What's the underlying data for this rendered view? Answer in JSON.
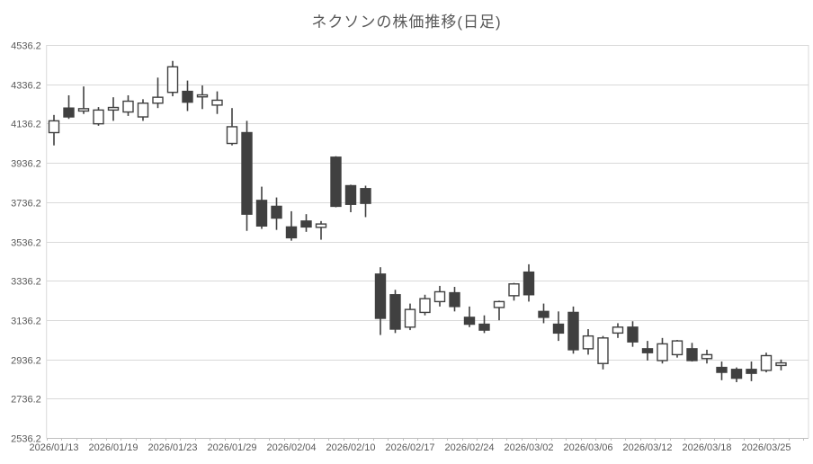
{
  "chart_data": {
    "type": "candlestick",
    "title": "ネクソンの株価推移(日足)",
    "xlabel": "",
    "ylabel": "",
    "ylim": [
      2536.2,
      4536.2
    ],
    "y_tick_step": 200,
    "y_tick_labels": [
      "4536.2",
      "4336.2",
      "4136.2",
      "3936.2",
      "3736.2",
      "3536.2",
      "3336.2",
      "3136.2",
      "2936.2",
      "2736.2",
      "2536.2"
    ],
    "x_tick_labels": [
      "2026/01/13",
      "2026/01/19",
      "2026/01/23",
      "2026/01/29",
      "2026/02/04",
      "2026/02/10",
      "2026/02/17",
      "2026/02/24",
      "2026/03/02",
      "2026/03/06",
      "2026/03/12",
      "2026/03/18",
      "2026/03/25"
    ],
    "x_label_interval": 4,
    "grid": true,
    "legend": false,
    "up_style": "hollow-white",
    "down_style": "filled-dark",
    "colors": {
      "background": "#FFFFFF",
      "gridline": "#D9D9D9",
      "axis_line": "#BFBFBF",
      "text": "#595959",
      "candle_outline": "#404040",
      "up_fill": "#FFFFFF",
      "down_fill": "#404040"
    },
    "series": [
      {
        "date": "2026/01/13",
        "open": 4090,
        "high": 4180,
        "low": 4025,
        "close": 4150
      },
      {
        "date": "2026/01/14",
        "open": 4215,
        "high": 4280,
        "low": 4160,
        "close": 4170
      },
      {
        "date": "2026/01/15",
        "open": 4200,
        "high": 4325,
        "low": 4185,
        "close": 4212
      },
      {
        "date": "2026/01/16",
        "open": 4135,
        "high": 4220,
        "low": 4125,
        "close": 4205
      },
      {
        "date": "2026/01/19",
        "open": 4205,
        "high": 4270,
        "low": 4150,
        "close": 4218
      },
      {
        "date": "2026/01/20",
        "open": 4195,
        "high": 4280,
        "low": 4175,
        "close": 4250
      },
      {
        "date": "2026/01/21",
        "open": 4170,
        "high": 4260,
        "low": 4150,
        "close": 4240
      },
      {
        "date": "2026/01/22",
        "open": 4240,
        "high": 4370,
        "low": 4215,
        "close": 4270
      },
      {
        "date": "2026/01/23",
        "open": 4295,
        "high": 4455,
        "low": 4275,
        "close": 4425
      },
      {
        "date": "2026/01/26",
        "open": 4300,
        "high": 4355,
        "low": 4200,
        "close": 4245
      },
      {
        "date": "2026/01/27",
        "open": 4272,
        "high": 4330,
        "low": 4210,
        "close": 4282
      },
      {
        "date": "2026/01/28",
        "open": 4230,
        "high": 4300,
        "low": 4185,
        "close": 4255
      },
      {
        "date": "2026/01/29",
        "open": 4035,
        "high": 4215,
        "low": 4025,
        "close": 4120
      },
      {
        "date": "2026/01/30",
        "open": 4090,
        "high": 4150,
        "low": 3590,
        "close": 3675
      },
      {
        "date": "2026/02/02",
        "open": 3745,
        "high": 3815,
        "low": 3600,
        "close": 3615
      },
      {
        "date": "2026/02/03",
        "open": 3715,
        "high": 3760,
        "low": 3595,
        "close": 3655
      },
      {
        "date": "2026/02/04",
        "open": 3610,
        "high": 3690,
        "low": 3540,
        "close": 3555
      },
      {
        "date": "2026/02/05",
        "open": 3640,
        "high": 3675,
        "low": 3585,
        "close": 3610
      },
      {
        "date": "2026/02/06",
        "open": 3608,
        "high": 3640,
        "low": 3545,
        "close": 3625
      },
      {
        "date": "2026/02/09",
        "open": 3965,
        "high": 3970,
        "low": 3710,
        "close": 3715
      },
      {
        "date": "2026/02/10",
        "open": 3820,
        "high": 3825,
        "low": 3685,
        "close": 3725
      },
      {
        "date": "2026/02/12",
        "open": 3805,
        "high": 3820,
        "low": 3660,
        "close": 3730
      },
      {
        "date": "2026/02/13",
        "open": 3370,
        "high": 3405,
        "low": 3060,
        "close": 3145
      },
      {
        "date": "2026/02/16",
        "open": 3265,
        "high": 3290,
        "low": 3070,
        "close": 3090
      },
      {
        "date": "2026/02/17",
        "open": 3100,
        "high": 3220,
        "low": 3085,
        "close": 3190
      },
      {
        "date": "2026/02/18",
        "open": 3175,
        "high": 3265,
        "low": 3160,
        "close": 3245
      },
      {
        "date": "2026/02/19",
        "open": 3230,
        "high": 3310,
        "low": 3205,
        "close": 3280
      },
      {
        "date": "2026/02/20",
        "open": 3275,
        "high": 3305,
        "low": 3180,
        "close": 3205
      },
      {
        "date": "2026/02/24",
        "open": 3150,
        "high": 3205,
        "low": 3100,
        "close": 3115
      },
      {
        "date": "2026/02/25",
        "open": 3115,
        "high": 3160,
        "low": 3070,
        "close": 3085
      },
      {
        "date": "2026/02/26",
        "open": 3200,
        "high": 3235,
        "low": 3135,
        "close": 3230
      },
      {
        "date": "2026/02/27",
        "open": 3260,
        "high": 3325,
        "low": 3235,
        "close": 3320
      },
      {
        "date": "2026/03/02",
        "open": 3380,
        "high": 3420,
        "low": 3230,
        "close": 3265
      },
      {
        "date": "2026/03/03",
        "open": 3180,
        "high": 3220,
        "low": 3120,
        "close": 3150
      },
      {
        "date": "2026/03/04",
        "open": 3115,
        "high": 3180,
        "low": 3030,
        "close": 3070
      },
      {
        "date": "2026/03/05",
        "open": 3175,
        "high": 3205,
        "low": 2965,
        "close": 2985
      },
      {
        "date": "2026/03/06",
        "open": 2990,
        "high": 3090,
        "low": 2960,
        "close": 3055
      },
      {
        "date": "2026/03/09",
        "open": 2915,
        "high": 3055,
        "low": 2885,
        "close": 3045
      },
      {
        "date": "2026/03/10",
        "open": 3070,
        "high": 3120,
        "low": 3045,
        "close": 3100
      },
      {
        "date": "2026/03/11",
        "open": 3100,
        "high": 3130,
        "low": 3000,
        "close": 3025
      },
      {
        "date": "2026/03/12",
        "open": 2990,
        "high": 3030,
        "low": 2930,
        "close": 2970
      },
      {
        "date": "2026/03/13",
        "open": 2930,
        "high": 3045,
        "low": 2915,
        "close": 3015
      },
      {
        "date": "2026/03/16",
        "open": 2960,
        "high": 3035,
        "low": 2945,
        "close": 3030
      },
      {
        "date": "2026/03/17",
        "open": 2990,
        "high": 3020,
        "low": 2925,
        "close": 2930
      },
      {
        "date": "2026/03/18",
        "open": 2940,
        "high": 2985,
        "low": 2915,
        "close": 2960
      },
      {
        "date": "2026/03/19",
        "open": 2895,
        "high": 2925,
        "low": 2830,
        "close": 2870
      },
      {
        "date": "2026/03/23",
        "open": 2885,
        "high": 2895,
        "low": 2820,
        "close": 2840
      },
      {
        "date": "2026/03/24",
        "open": 2885,
        "high": 2925,
        "low": 2825,
        "close": 2865
      },
      {
        "date": "2026/03/25",
        "open": 2880,
        "high": 2970,
        "low": 2870,
        "close": 2955
      },
      {
        "date": "2026/03/26",
        "open": 2905,
        "high": 2935,
        "low": 2880,
        "close": 2918
      }
    ]
  }
}
